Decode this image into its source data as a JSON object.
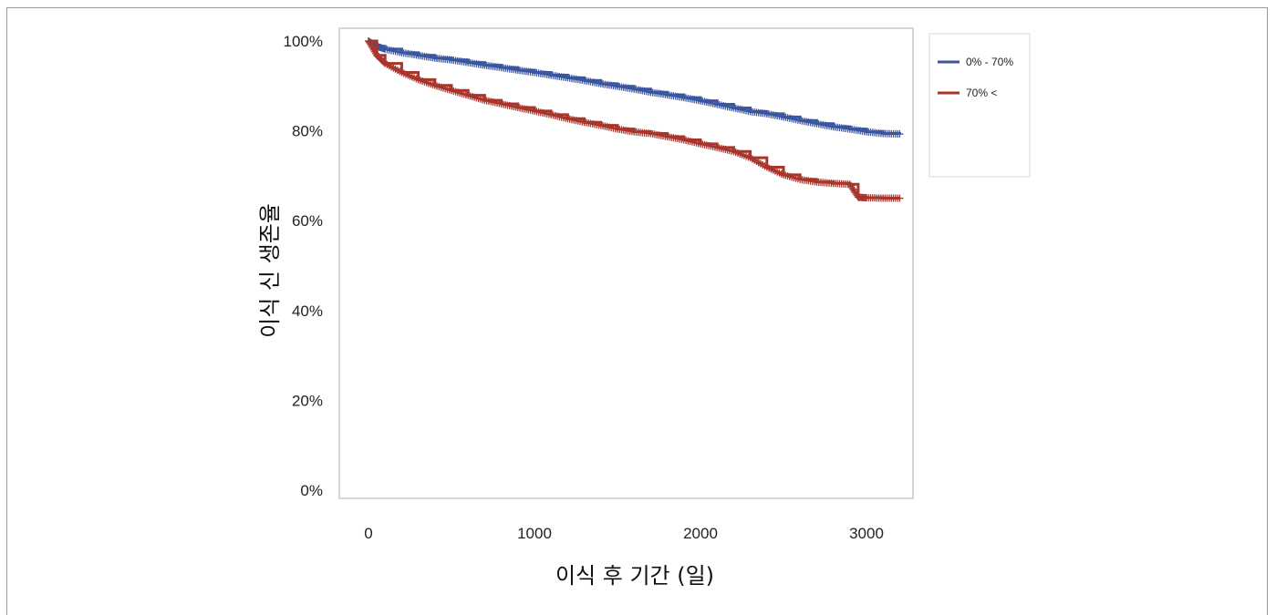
{
  "chart_data": {
    "type": "line",
    "title": "",
    "xlabel": "이식 후 기간 (일)",
    "ylabel": "이식 신 생존율",
    "xlim": [
      -180,
      3300
    ],
    "ylim": [
      0,
      100
    ],
    "x_ticks": [
      0,
      1000,
      2000,
      3000
    ],
    "x_tick_labels": [
      "0",
      "1000",
      "2000",
      "3000"
    ],
    "y_ticks": [
      0,
      20,
      40,
      60,
      80,
      100
    ],
    "y_tick_labels": [
      "0%",
      "20%",
      "40%",
      "60%",
      "80%",
      "100%"
    ],
    "grid": false,
    "legend_position": "right",
    "series": [
      {
        "name": "0% - 70%",
        "color": "#3a56a0",
        "x": [
          0,
          50,
          100,
          200,
          300,
          400,
          500,
          600,
          700,
          800,
          900,
          1000,
          1100,
          1200,
          1300,
          1400,
          1500,
          1600,
          1700,
          1800,
          1900,
          2000,
          2100,
          2200,
          2300,
          2400,
          2500,
          2600,
          2700,
          2800,
          2900,
          3000,
          3100,
          3200
        ],
        "y": [
          100,
          98.8,
          98.2,
          97.4,
          96.8,
          96.2,
          95.8,
          95.2,
          94.6,
          94.1,
          93.5,
          93,
          92.4,
          91.8,
          91.2,
          90.5,
          89.9,
          89.3,
          88.6,
          88,
          87.4,
          86.7,
          85.9,
          85.1,
          84.3,
          83.8,
          83.1,
          82.3,
          81.6,
          80.9,
          80.4,
          79.8,
          79.4,
          79.3
        ]
      },
      {
        "name": "70% <",
        "color": "#a8352c",
        "x": [
          0,
          50,
          100,
          200,
          300,
          400,
          500,
          600,
          700,
          800,
          900,
          1000,
          1100,
          1200,
          1300,
          1400,
          1500,
          1600,
          1700,
          1800,
          1900,
          2000,
          2100,
          2200,
          2300,
          2400,
          2500,
          2600,
          2700,
          2800,
          2900,
          2950,
          3000,
          3100,
          3200
        ],
        "y": [
          100,
          96.8,
          95,
          93,
          91.4,
          90.1,
          89,
          87.9,
          86.8,
          86,
          85.2,
          84.4,
          83.6,
          82.7,
          81.9,
          81.2,
          80.4,
          79.8,
          79.4,
          78.7,
          78,
          77.1,
          76.3,
          75.4,
          74,
          71.9,
          70.2,
          69.2,
          68.6,
          68.3,
          68.1,
          65.2,
          65.1,
          65,
          65
        ]
      }
    ]
  }
}
